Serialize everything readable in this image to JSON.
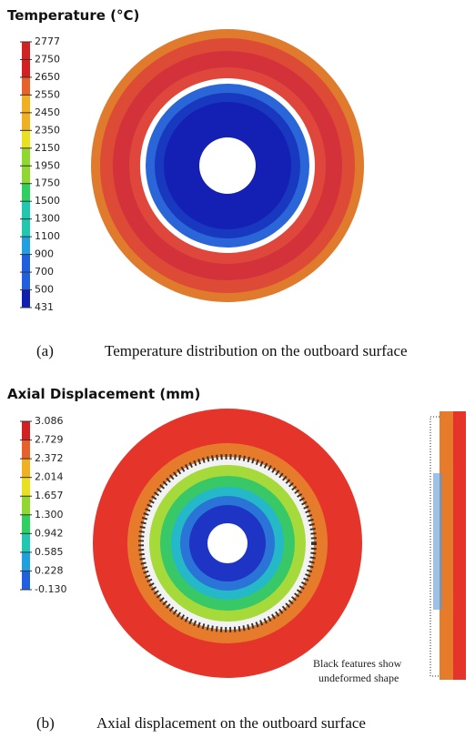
{
  "figures": [
    {
      "title": "Temperature (°C)",
      "legend": [
        "2777",
        "2750",
        "2650",
        "2550",
        "2450",
        "2350",
        "2150",
        "1950",
        "1750",
        "1500",
        "1300",
        "1100",
        "900",
        "700",
        "500",
        "431"
      ],
      "caption_label": "(a)",
      "caption": "Temperature distribution on the outboard surface"
    },
    {
      "title": "Axial Displacement (mm)",
      "legend": [
        "3.086",
        "2.729",
        "2.372",
        "2.014",
        "1.657",
        "1.300",
        "0.942",
        "0.585",
        "0.228",
        "-0.130"
      ],
      "caption_label": "(b)",
      "caption": "Axial displacement on the outboard surface",
      "note": [
        "Black features show",
        "undeformed shape"
      ]
    }
  ]
}
